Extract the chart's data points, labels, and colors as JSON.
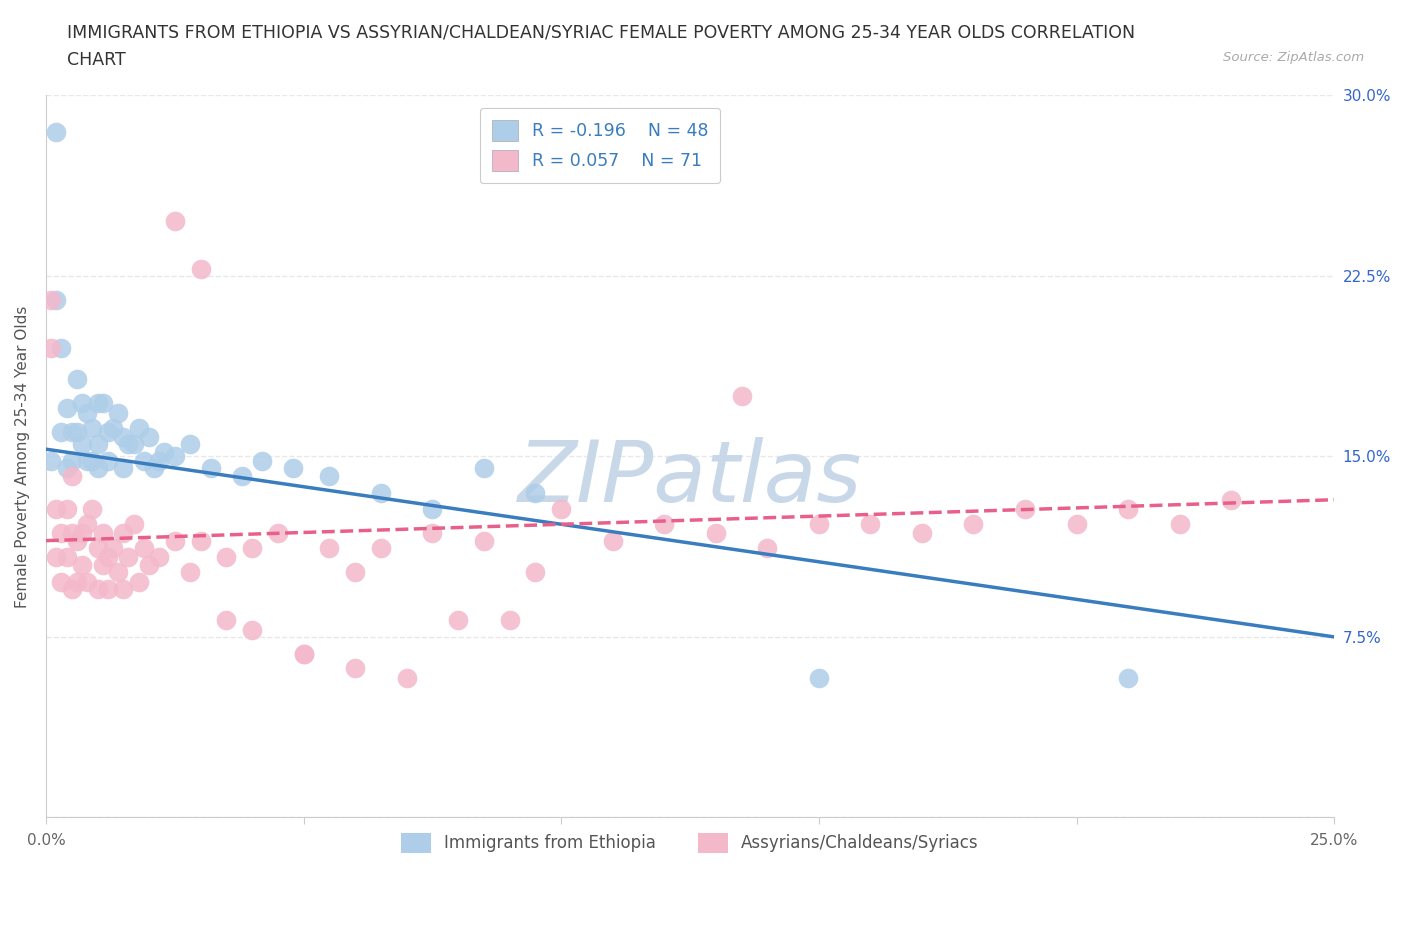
{
  "title_line1": "IMMIGRANTS FROM ETHIOPIA VS ASSYRIAN/CHALDEAN/SYRIAC FEMALE POVERTY AMONG 25-34 YEAR OLDS CORRELATION",
  "title_line2": "CHART",
  "source": "Source: ZipAtlas.com",
  "ylabel": "Female Poverty Among 25-34 Year Olds",
  "xlim": [
    0.0,
    0.25
  ],
  "ylim": [
    0.0,
    0.3
  ],
  "xticks": [
    0.0,
    0.05,
    0.1,
    0.15,
    0.2,
    0.25
  ],
  "xticklabels": [
    "0.0%",
    "",
    "",
    "",
    "",
    "25.0%"
  ],
  "ytick_vals": [
    0.0,
    0.075,
    0.15,
    0.225,
    0.3
  ],
  "yticklabels": [
    "",
    "7.5%",
    "15.0%",
    "22.5%",
    "30.0%"
  ],
  "blue_color": "#aecde8",
  "pink_color": "#f4b8cb",
  "blue_line_color": "#3a7dbf",
  "pink_line_color": "#e8608a",
  "watermark": "ZIPatlas",
  "legend_r1": "R = -0.196",
  "legend_n1": "N = 48",
  "legend_r2": "R = 0.057",
  "legend_n2": "N = 71",
  "legend_label1": "Immigrants from Ethiopia",
  "legend_label2": "Assyrians/Chaldeans/Syriacs",
  "blue_scatter_x": [
    0.001,
    0.002,
    0.002,
    0.003,
    0.003,
    0.004,
    0.004,
    0.005,
    0.005,
    0.006,
    0.006,
    0.007,
    0.007,
    0.008,
    0.008,
    0.009,
    0.009,
    0.01,
    0.01,
    0.01,
    0.011,
    0.012,
    0.012,
    0.013,
    0.014,
    0.015,
    0.015,
    0.016,
    0.017,
    0.018,
    0.019,
    0.02,
    0.021,
    0.022,
    0.023,
    0.025,
    0.028,
    0.032,
    0.038,
    0.042,
    0.048,
    0.055,
    0.065,
    0.075,
    0.085,
    0.095,
    0.15,
    0.21
  ],
  "blue_scatter_y": [
    0.148,
    0.285,
    0.215,
    0.195,
    0.16,
    0.17,
    0.145,
    0.16,
    0.148,
    0.182,
    0.16,
    0.172,
    0.155,
    0.168,
    0.148,
    0.162,
    0.148,
    0.172,
    0.155,
    0.145,
    0.172,
    0.16,
    0.148,
    0.162,
    0.168,
    0.158,
    0.145,
    0.155,
    0.155,
    0.162,
    0.148,
    0.158,
    0.145,
    0.148,
    0.152,
    0.15,
    0.155,
    0.145,
    0.142,
    0.148,
    0.145,
    0.142,
    0.135,
    0.128,
    0.145,
    0.135,
    0.058,
    0.058
  ],
  "pink_scatter_x": [
    0.001,
    0.001,
    0.002,
    0.002,
    0.003,
    0.003,
    0.004,
    0.004,
    0.005,
    0.005,
    0.005,
    0.006,
    0.006,
    0.007,
    0.007,
    0.008,
    0.008,
    0.009,
    0.01,
    0.01,
    0.011,
    0.011,
    0.012,
    0.012,
    0.013,
    0.014,
    0.015,
    0.015,
    0.016,
    0.017,
    0.018,
    0.019,
    0.02,
    0.022,
    0.025,
    0.028,
    0.03,
    0.035,
    0.04,
    0.045,
    0.05,
    0.055,
    0.06,
    0.065,
    0.075,
    0.085,
    0.095,
    0.1,
    0.11,
    0.12,
    0.13,
    0.14,
    0.15,
    0.16,
    0.17,
    0.18,
    0.19,
    0.2,
    0.21,
    0.22,
    0.025,
    0.03,
    0.035,
    0.04,
    0.05,
    0.06,
    0.07,
    0.08,
    0.09,
    0.135,
    0.23
  ],
  "pink_scatter_y": [
    0.215,
    0.195,
    0.128,
    0.108,
    0.118,
    0.098,
    0.128,
    0.108,
    0.118,
    0.142,
    0.095,
    0.115,
    0.098,
    0.118,
    0.105,
    0.122,
    0.098,
    0.128,
    0.112,
    0.095,
    0.118,
    0.105,
    0.108,
    0.095,
    0.112,
    0.102,
    0.118,
    0.095,
    0.108,
    0.122,
    0.098,
    0.112,
    0.105,
    0.108,
    0.115,
    0.102,
    0.115,
    0.108,
    0.112,
    0.118,
    0.068,
    0.112,
    0.102,
    0.112,
    0.118,
    0.115,
    0.102,
    0.128,
    0.115,
    0.122,
    0.118,
    0.112,
    0.122,
    0.122,
    0.118,
    0.122,
    0.128,
    0.122,
    0.128,
    0.122,
    0.248,
    0.228,
    0.082,
    0.078,
    0.068,
    0.062,
    0.058,
    0.082,
    0.082,
    0.175,
    0.132
  ],
  "blue_trend_x": [
    0.0,
    0.25
  ],
  "blue_trend_y": [
    0.153,
    0.075
  ],
  "pink_trend_x": [
    0.0,
    0.25
  ],
  "pink_trend_y": [
    0.115,
    0.132
  ],
  "grid_color": "#e8e8e8",
  "bg_color": "#ffffff",
  "watermark_color": "#c8d8e8",
  "title_fontsize": 12.5,
  "label_fontsize": 11,
  "tick_fontsize": 11,
  "right_tick_color": "#3366cc"
}
